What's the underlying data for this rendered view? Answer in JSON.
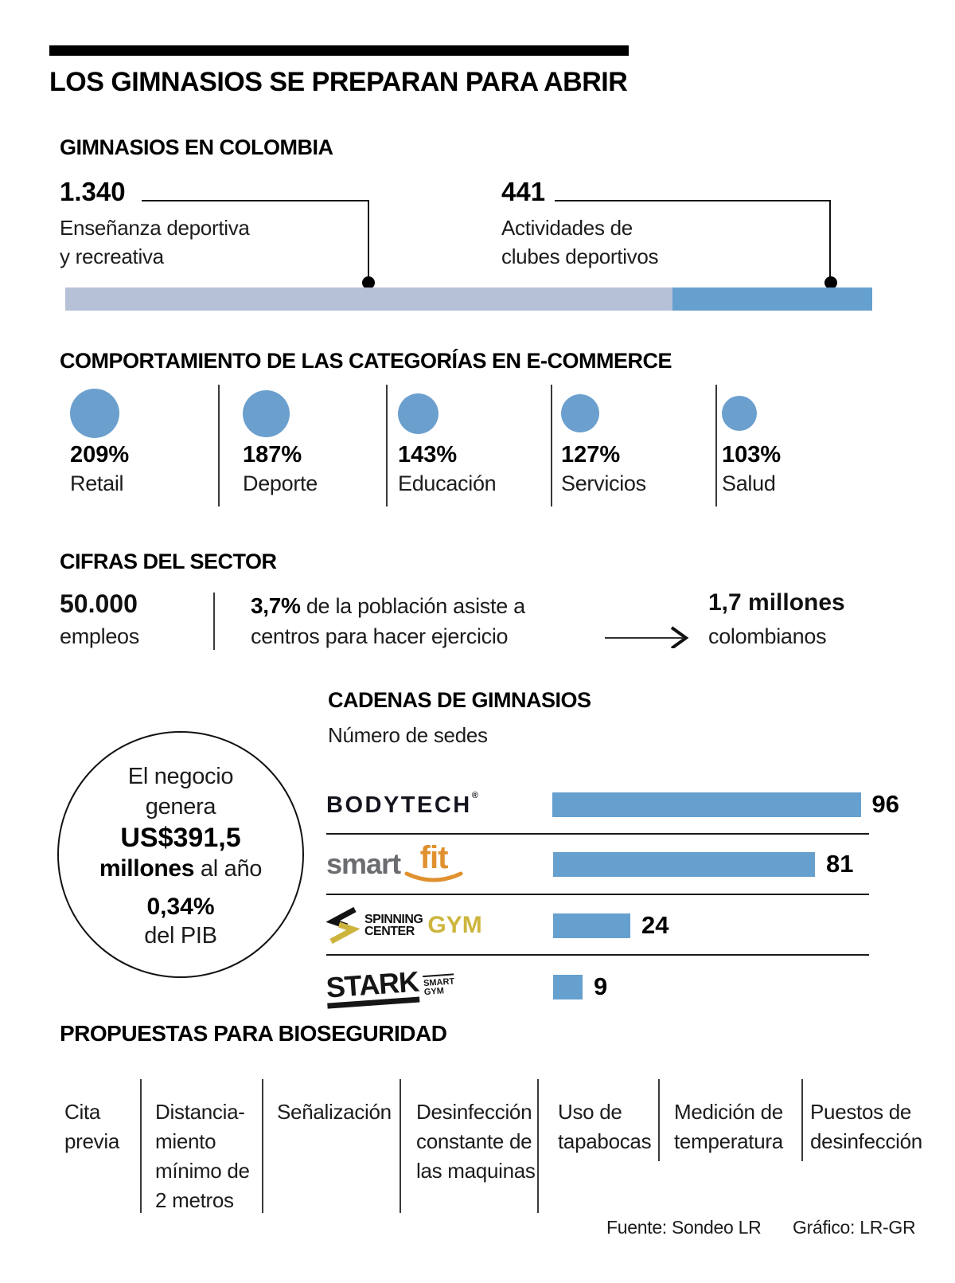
{
  "header": {
    "title": "LOS GIMNASIOS SE PREPARAN PARA ABRIR"
  },
  "palette": {
    "bar_light": "#b6c0d6",
    "bar_blue": "#66a0ce",
    "text_black": "#111111",
    "smartfit_gray": "#6a6c70",
    "smartfit_orange": "#e0912f",
    "spinning_yellow": "#cdb53d",
    "bodytech_black": "#14141e"
  },
  "gimnasios": {
    "section_title": "GIMNASIOS EN COLOMBIA",
    "items": [
      {
        "value": "1.340",
        "label": "Enseñanza deportiva\ny recreativa"
      },
      {
        "value": "441",
        "label": "Actividades de\nclubes deportivos"
      }
    ]
  },
  "ecommerce": {
    "section_title": "COMPORTAMIENTO DE LAS CATEGORÍAS EN E-COMMERCE",
    "categories": [
      {
        "pct": "209%",
        "label": "Retail"
      },
      {
        "pct": "187%",
        "label": "Deporte"
      },
      {
        "pct": "143%",
        "label": "Educación"
      },
      {
        "pct": "127%",
        "label": "Servicios"
      },
      {
        "pct": "103%",
        "label": "Salud"
      }
    ]
  },
  "cifras": {
    "section_title": "CIFRAS DEL SECTOR",
    "stat1_value": "50.000",
    "stat1_label": "empleos",
    "stat2_bold": "3,7%",
    "stat2_line1": " de la población asiste a",
    "stat2_line2": "centros para hacer ejercicio",
    "stat3_value": "1,7 millones",
    "stat3_label": "colombianos"
  },
  "negocio": {
    "line1": "El negocio",
    "line2": "genera",
    "line3_bold": "US$391,5",
    "line4_bold": "millones",
    "line4_rest": " al año",
    "line5_bold": "0,34%",
    "line6": "del PIB"
  },
  "cadenas": {
    "section_title": "CADENAS DE GIMNASIOS",
    "subtitle": "Número de sedes",
    "logos": {
      "bodytech": {
        "text": "BODYTECH",
        "reg": "®"
      },
      "smartfit": {
        "word1": "smart",
        "word2": "fit"
      },
      "spinning": {
        "line1": "SPINNING",
        "line2": "CENTER",
        "gym": "GYM"
      },
      "stark": {
        "name": "STARK",
        "sub_line1": "SMART",
        "sub_line2": "GYM"
      }
    }
  },
  "bioseguridad": {
    "section_title": "PROPUESTAS PARA BIOSEGURIDAD",
    "items": [
      "Cita\nprevia",
      "Distancia-\nmiento\nmínimo de\n2 metros",
      "Señalización",
      "Desinfección\nconstante de\nlas maquinas",
      "Uso de\ntapabocas",
      "Medición de\ntemperatura",
      "Puestos de\ndesinfección"
    ]
  },
  "footer": {
    "source": "Fuente: Sondeo LR",
    "credit": "Gráfico: LR-GR"
  },
  "chart_data": [
    {
      "type": "bar",
      "subtype": "stacked-horizontal-single-bar",
      "title": "GIMNASIOS EN COLOMBIA",
      "series": [
        {
          "name": "Enseñanza deportiva y recreativa",
          "values": [
            1340
          ],
          "color": "#b6c0d6"
        },
        {
          "name": "Actividades de clubes deportivos",
          "values": [
            441
          ],
          "color": "#66a0ce"
        }
      ],
      "total": 1781,
      "legend_position": "above-with-leader-lines",
      "grid": false
    },
    {
      "type": "bar",
      "subtype": "proportional-circles",
      "title": "COMPORTAMIENTO DE LAS CATEGORÍAS EN E-COMMERCE",
      "categories": [
        "Retail",
        "Deporte",
        "Educación",
        "Servicios",
        "Salud"
      ],
      "values": [
        209,
        187,
        143,
        127,
        103
      ],
      "unit": "%",
      "circle_color": "#6b9fce",
      "grid": false
    },
    {
      "type": "bar",
      "subtype": "horizontal",
      "title": "CADENAS DE GIMNASIOS",
      "subtitle": "Número de sedes",
      "categories": [
        "Bodytech",
        "Smart Fit",
        "Spinning Center Gym",
        "Stark Smart Gym"
      ],
      "values": [
        96,
        81,
        24,
        9
      ],
      "xlim": [
        0,
        100
      ],
      "bar_color": "#66a0ce",
      "data_labels": true,
      "grid": false
    }
  ]
}
